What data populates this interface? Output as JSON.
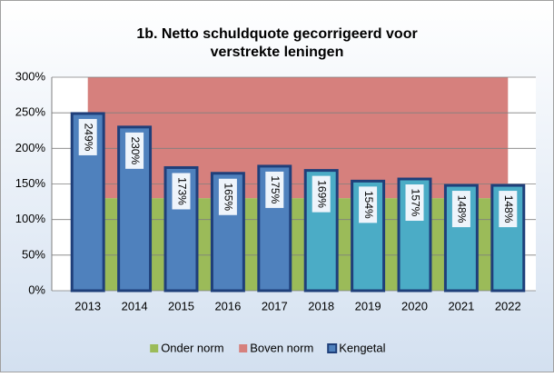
{
  "chart_data": {
    "type": "bar",
    "title": "1b. Netto schuldquote  gecorrigeerd  voor",
    "subtitle": "verstrekte  leningen",
    "categories": [
      "2013",
      "2014",
      "2015",
      "2016",
      "2017",
      "2018",
      "2019",
      "2020",
      "2021",
      "2022"
    ],
    "series": [
      {
        "name": "Onder norm",
        "kind": "area",
        "color": "#9bbb59",
        "values": [
          130,
          130,
          130,
          130,
          130,
          130,
          130,
          130,
          130,
          130
        ]
      },
      {
        "name": "Boven norm",
        "kind": "area",
        "color": "#d6807d",
        "values": [
          170,
          170,
          170,
          170,
          170,
          170,
          170,
          170,
          170,
          170
        ]
      },
      {
        "name": "Kengetal",
        "kind": "bar",
        "color": "#4f81bd",
        "border": "#1f3f7a",
        "colors": [
          "#4f81bd",
          "#4f81bd",
          "#4f81bd",
          "#4f81bd",
          "#4f81bd",
          "#4bacc6",
          "#4bacc6",
          "#4bacc6",
          "#4bacc6",
          "#4bacc6"
        ],
        "values": [
          249,
          230,
          173,
          165,
          175,
          169,
          154,
          157,
          148,
          148
        ],
        "value_labels": [
          "249%",
          "230%",
          "173%",
          "165%",
          "175%",
          "169%",
          "154%",
          "157%",
          "148%",
          "148%"
        ]
      }
    ],
    "ylim": [
      0,
      300
    ],
    "yticks": [
      {
        "value": 0,
        "label": "0%"
      },
      {
        "value": 50,
        "label": "50%"
      },
      {
        "value": 100,
        "label": "100%"
      },
      {
        "value": 150,
        "label": "150%"
      },
      {
        "value": 200,
        "label": "200%"
      },
      {
        "value": 250,
        "label": "250%"
      },
      {
        "value": 300,
        "label": "300%"
      }
    ],
    "grid": true,
    "legend": "bottom"
  }
}
